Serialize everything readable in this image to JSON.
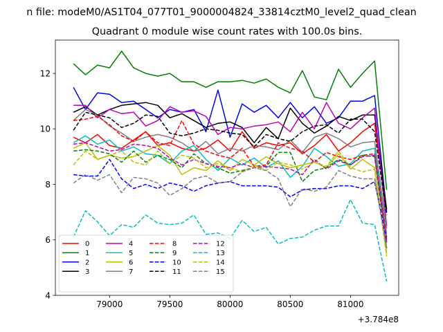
{
  "chart_data": {
    "type": "line",
    "suptitle": "n file: modeM0/AS1T04_077T01_9000004824_33814cztM0_level2_quad_clean",
    "title": "Quadrant 0 module wise count rates with 100.0s bins.",
    "xlabel": "",
    "ylabel": "",
    "x_offset_label": "+3.784e8",
    "xlim": [
      78550,
      81400
    ],
    "ylim": [
      4,
      13.2
    ],
    "xticks": [
      79000,
      79500,
      80000,
      80500,
      81000
    ],
    "yticks": [
      4,
      6,
      8,
      10,
      12
    ],
    "x": [
      78700,
      78800,
      78900,
      79000,
      79100,
      79200,
      79300,
      79400,
      79500,
      79600,
      79700,
      79800,
      79900,
      80000,
      80100,
      80200,
      80300,
      80400,
      80500,
      80600,
      80700,
      80800,
      80900,
      81000,
      81100,
      81200,
      81300
    ],
    "legend_position": "lower-left",
    "legend_columns": 4,
    "series": [
      {
        "name": "0",
        "color": "#ff0000",
        "dash": "solid",
        "values": [
          9.7,
          9.5,
          9.8,
          9.4,
          9.3,
          9.6,
          9.9,
          9.4,
          9.5,
          9.3,
          9.2,
          9.3,
          9.6,
          9.2,
          9.9,
          9.3,
          9.5,
          9.4,
          9.5,
          9.1,
          9.4,
          9.8,
          9.2,
          9.5,
          9.9,
          10.2,
          7.0
        ]
      },
      {
        "name": "1",
        "color": "#008000",
        "dash": "solid",
        "values": [
          12.35,
          11.95,
          12.3,
          12.2,
          12.8,
          12.2,
          12.0,
          11.9,
          12.0,
          11.7,
          11.7,
          11.5,
          11.7,
          11.7,
          11.75,
          11.65,
          11.8,
          11.5,
          11.3,
          12.1,
          11.15,
          11.05,
          12.15,
          11.5,
          12.0,
          12.45,
          7.8
        ]
      },
      {
        "name": "2",
        "color": "#0000ff",
        "dash": "solid",
        "values": [
          11.5,
          10.7,
          11.3,
          11.25,
          10.95,
          11.0,
          10.7,
          10.4,
          10.7,
          10.6,
          10.7,
          9.9,
          11.4,
          9.7,
          10.9,
          10.6,
          10.85,
          10.4,
          10.95,
          10.4,
          10.8,
          10.2,
          10.4,
          11.0,
          11.0,
          11.2,
          7.0
        ]
      },
      {
        "name": "3",
        "color": "#000000",
        "dash": "solid",
        "values": [
          10.6,
          10.8,
          10.5,
          10.7,
          10.85,
          10.9,
          10.95,
          10.85,
          10.4,
          10.55,
          10.3,
          10.05,
          10.2,
          10.25,
          10.05,
          9.5,
          10.05,
          9.65,
          10.75,
          10.2,
          9.85,
          10.1,
          10.45,
          10.3,
          10.5,
          10.5,
          7.1
        ]
      },
      {
        "name": "4",
        "color": "#bf00bf",
        "dash": "solid",
        "values": [
          10.85,
          10.85,
          10.4,
          10.7,
          10.55,
          10.6,
          10.1,
          10.3,
          10.8,
          10.6,
          10.65,
          10.45,
          9.8,
          10.05,
          10.0,
          10.1,
          10.15,
          10.25,
          9.9,
          10.6,
          10.0,
          10.95,
          10.2,
          10.0,
          10.4,
          10.75,
          6.5
        ]
      },
      {
        "name": "5",
        "color": "#00bfbf",
        "dash": "solid",
        "values": [
          9.5,
          9.75,
          9.45,
          9.6,
          9.2,
          9.35,
          9.1,
          9.05,
          8.75,
          9.2,
          9.4,
          8.9,
          8.5,
          8.95,
          8.7,
          8.95,
          8.6,
          8.85,
          8.25,
          8.65,
          9.3,
          9.0,
          8.65,
          8.75,
          9.2,
          9.3,
          6.2
        ]
      },
      {
        "name": "6",
        "color": "#bfbf00",
        "dash": "solid",
        "values": [
          9.3,
          9.5,
          8.9,
          9.05,
          8.95,
          9.0,
          9.2,
          9.4,
          9.05,
          8.35,
          8.6,
          8.5,
          8.85,
          8.5,
          8.9,
          8.7,
          9.0,
          8.75,
          8.6,
          8.7,
          8.8,
          8.6,
          9.1,
          8.55,
          8.9,
          8.6,
          5.5
        ]
      },
      {
        "name": "7",
        "color": "#808080",
        "dash": "solid",
        "values": [
          10.3,
          10.7,
          10.5,
          10.1,
          9.85,
          9.55,
          9.7,
          9.8,
          9.7,
          9.5,
          9.2,
          9.55,
          9.1,
          9.3,
          9.2,
          9.4,
          9.35,
          9.25,
          9.6,
          9.15,
          9.7,
          9.85,
          9.65,
          9.35,
          9.5,
          9.55,
          6.4
        ]
      },
      {
        "name": "8",
        "color": "#ff0000",
        "dash": "dashed",
        "values": [
          10.3,
          10.35,
          10.45,
          10.15,
          9.75,
          9.55,
          9.9,
          9.5,
          9.4,
          10.3,
          9.45,
          9.2,
          9.05,
          8.95,
          9.3,
          8.65,
          8.7,
          9.5,
          9.3,
          9.2,
          8.8,
          9.15,
          9.0,
          8.9,
          9.05,
          9.1,
          6.1
        ]
      },
      {
        "name": "9",
        "color": "#008000",
        "dash": "dashed",
        "values": [
          9.2,
          9.25,
          9.2,
          9.1,
          8.8,
          9.2,
          8.8,
          9.05,
          8.9,
          8.6,
          9.1,
          8.75,
          8.6,
          8.4,
          8.5,
          8.6,
          8.65,
          9.15,
          9.15,
          8.1,
          8.5,
          8.6,
          8.9,
          8.7,
          9.05,
          9.0,
          5.7
        ]
      },
      {
        "name": "10",
        "color": "#0000ff",
        "dash": "dashed",
        "values": [
          8.35,
          8.3,
          8.3,
          8.9,
          8.2,
          7.85,
          8.0,
          7.85,
          8.05,
          7.95,
          7.75,
          7.95,
          8.05,
          8.1,
          7.95,
          7.95,
          7.95,
          7.9,
          7.55,
          7.8,
          7.85,
          7.85,
          7.95,
          7.95,
          7.85,
          8.1,
          6.0
        ]
      },
      {
        "name": "11",
        "color": "#000000",
        "dash": "dashed",
        "values": [
          9.95,
          10.6,
          10.5,
          10.4,
          10.05,
          10.2,
          10.5,
          10.45,
          9.85,
          9.75,
          9.85,
          10.0,
          9.95,
          9.85,
          9.8,
          9.35,
          9.8,
          9.65,
          9.55,
          9.9,
          10.1,
          10.15,
          9.85,
          10.35,
          10.35,
          9.9,
          6.9
        ]
      },
      {
        "name": "12",
        "color": "#bf00bf",
        "dash": "dashed",
        "values": [
          9.45,
          9.5,
          9.35,
          9.2,
          9.25,
          9.45,
          9.4,
          9.3,
          8.95,
          8.7,
          8.9,
          8.75,
          8.65,
          8.6,
          8.75,
          8.6,
          8.65,
          8.6,
          8.55,
          8.35,
          8.9,
          8.55,
          8.85,
          8.7,
          9.0,
          9.05,
          5.9
        ]
      },
      {
        "name": "13",
        "color": "#00bfbf",
        "dash": "dashed",
        "values": [
          6.1,
          7.05,
          6.65,
          6.15,
          6.55,
          6.45,
          6.9,
          6.6,
          6.55,
          6.6,
          6.9,
          6.2,
          6.25,
          6.05,
          6.7,
          6.3,
          6.45,
          5.85,
          6.05,
          6.1,
          6.35,
          6.5,
          6.5,
          7.45,
          6.6,
          6.55,
          4.5
        ]
      },
      {
        "name": "14",
        "color": "#bfbf00",
        "dash": "dashed",
        "values": [
          8.7,
          9.2,
          8.9,
          9.05,
          9.2,
          8.8,
          8.7,
          9.2,
          8.75,
          9.05,
          8.95,
          8.6,
          8.75,
          8.6,
          8.45,
          8.7,
          8.5,
          8.8,
          8.7,
          8.55,
          8.8,
          8.65,
          9.2,
          8.6,
          8.45,
          8.55,
          5.4
        ]
      },
      {
        "name": "15",
        "color": "#808080",
        "dash": "dashed",
        "values": [
          8.05,
          8.35,
          8.15,
          8.35,
          7.7,
          8.25,
          8.2,
          8.05,
          7.6,
          7.85,
          8.2,
          8.3,
          8.05,
          8.1,
          8.45,
          8.6,
          8.5,
          8.2,
          7.2,
          7.85,
          7.75,
          7.9,
          8.5,
          8.3,
          8.2,
          8.2,
          5.7
        ]
      }
    ]
  }
}
